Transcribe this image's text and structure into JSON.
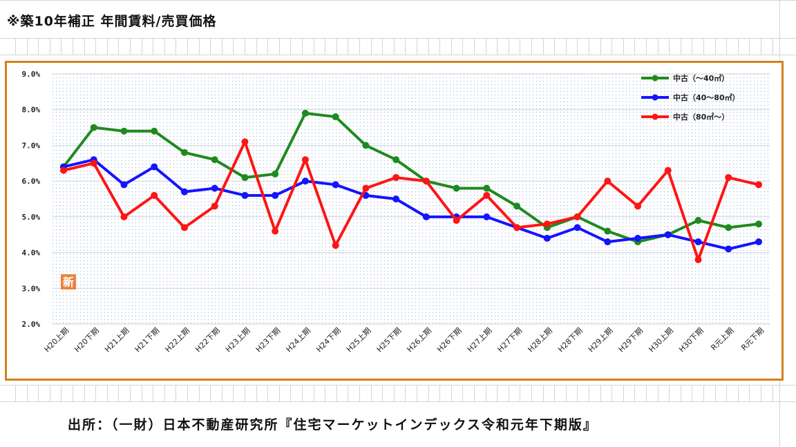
{
  "header": {
    "title": "※築10年補正 年間賃料/売買価格"
  },
  "footer": {
    "source": "出所：（一財）日本不動産研究所『住宅マーケットインデックス令和元年下期版』"
  },
  "chart_badge": "新",
  "chart_data": {
    "type": "line",
    "title": "",
    "xlabel": "",
    "ylabel": "",
    "ylim": [
      2.0,
      9.0
    ],
    "yticks": [
      "2.0%",
      "3.0%",
      "4.0%",
      "5.0%",
      "6.0%",
      "7.0%",
      "8.0%",
      "9.0%"
    ],
    "grid": true,
    "legend_position": "top-right",
    "categories": [
      "H20上期",
      "H20下期",
      "H21上期",
      "H21下期",
      "H22上期",
      "H22下期",
      "H23上期",
      "H23下期",
      "H24上期",
      "H24下期",
      "H25上期",
      "H25下期",
      "H26上期",
      "H26下期",
      "H27上期",
      "H27下期",
      "H28上期",
      "H28下期",
      "H29上期",
      "H29下期",
      "H30上期",
      "H30下期",
      "R元上期",
      "R元下期"
    ],
    "series": [
      {
        "name": "中古（～40㎡）",
        "color": "#1e8a1e",
        "values": [
          6.4,
          7.5,
          7.4,
          7.4,
          6.8,
          6.6,
          6.1,
          6.2,
          7.9,
          7.8,
          7.0,
          6.6,
          6.0,
          5.8,
          5.8,
          5.3,
          4.7,
          5.0,
          4.6,
          4.3,
          4.5,
          4.9,
          4.7,
          4.8
        ]
      },
      {
        "name": "中古（40～80㎡）",
        "color": "#1414ff",
        "values": [
          6.4,
          6.6,
          5.9,
          6.4,
          5.7,
          5.8,
          5.6,
          5.6,
          6.0,
          5.9,
          5.6,
          5.5,
          5.0,
          5.0,
          5.0,
          4.7,
          4.4,
          4.7,
          4.3,
          4.4,
          4.5,
          4.3,
          4.1,
          4.3
        ]
      },
      {
        "name": "中古（80㎡～）",
        "color": "#ff1414",
        "values": [
          6.3,
          6.5,
          5.0,
          5.6,
          4.7,
          5.3,
          7.1,
          4.6,
          6.6,
          4.2,
          5.8,
          6.1,
          6.0,
          4.9,
          5.6,
          4.7,
          4.8,
          5.0,
          6.0,
          5.3,
          6.3,
          3.8,
          6.1,
          5.9
        ]
      }
    ]
  }
}
